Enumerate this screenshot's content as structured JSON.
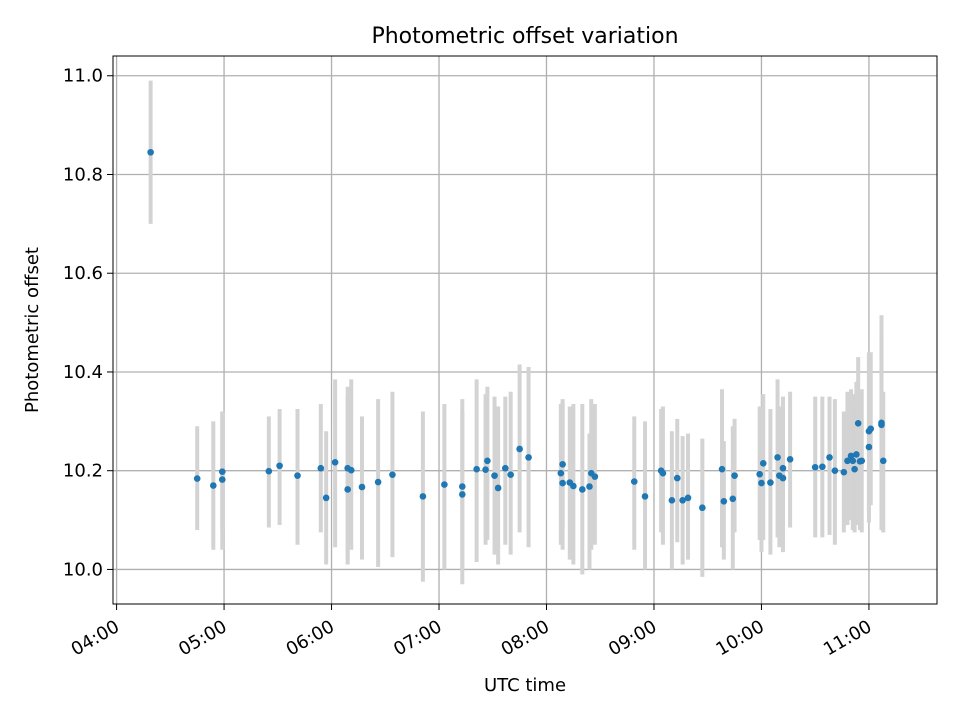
{
  "chart_data": {
    "type": "scatter",
    "title": "Photometric offset variation",
    "xlabel": "UTC time",
    "ylabel": "Photometric offset",
    "xlim": [
      "03:58",
      "11:38"
    ],
    "ylim": [
      9.93,
      11.04
    ],
    "grid": true,
    "x_ticks": [
      "04:00",
      "05:00",
      "06:00",
      "07:00",
      "08:00",
      "09:00",
      "10:00",
      "11:00"
    ],
    "y_ticks": [
      "10.0",
      "10.2",
      "10.4",
      "10.6",
      "10.8",
      "11.0"
    ],
    "colors": {
      "marker": "#1f77b4",
      "errorbar": "#d3d3d3",
      "grid": "#b0b0b0"
    },
    "series": [
      {
        "x": [
          "04:19",
          "04:45",
          "04:54",
          "04:59",
          "04:59",
          "05:25",
          "05:31",
          "05:41",
          "05:54",
          "05:57",
          "06:02",
          "06:09",
          "06:09",
          "06:11",
          "06:17",
          "06:26",
          "06:34",
          "06:51",
          "07:03",
          "07:13",
          "07:13",
          "07:21",
          "07:26",
          "07:27",
          "07:31",
          "07:33",
          "07:37",
          "07:40",
          "07:45",
          "07:50",
          "08:08",
          "08:09",
          "08:09",
          "08:13",
          "08:15",
          "08:20",
          "08:24",
          "08:25",
          "08:27",
          "08:49",
          "08:55",
          "09:04",
          "09:05",
          "09:10",
          "09:13",
          "09:16",
          "09:19",
          "09:27",
          "09:38",
          "09:39",
          "09:44",
          "09:45",
          "09:59",
          "10:00",
          "10:01",
          "10:05",
          "10:09",
          "10:10",
          "10:12",
          "10:12",
          "10:16",
          "10:30",
          "10:34",
          "10:38",
          "10:41",
          "10:46",
          "10:48",
          "10:50",
          "10:51",
          "10:52",
          "10:53",
          "10:54",
          "10:55",
          "10:56",
          "11:00",
          "11:00",
          "11:01",
          "11:07",
          "11:07",
          "11:08"
        ],
        "y": [
          10.845,
          10.184,
          10.17,
          10.198,
          10.182,
          10.199,
          10.21,
          10.19,
          10.205,
          10.145,
          10.217,
          10.162,
          10.205,
          10.201,
          10.167,
          10.177,
          10.192,
          10.148,
          10.172,
          10.152,
          10.168,
          10.203,
          10.202,
          10.22,
          10.19,
          10.165,
          10.205,
          10.192,
          10.244,
          10.227,
          10.195,
          10.175,
          10.213,
          10.176,
          10.169,
          10.162,
          10.168,
          10.195,
          10.188,
          10.178,
          10.148,
          10.2,
          10.195,
          10.14,
          10.185,
          10.14,
          10.145,
          10.125,
          10.203,
          10.138,
          10.143,
          10.19,
          10.193,
          10.175,
          10.215,
          10.176,
          10.227,
          10.19,
          10.205,
          10.185,
          10.223,
          10.207,
          10.208,
          10.227,
          10.2,
          10.197,
          10.22,
          10.23,
          10.22,
          10.203,
          10.233,
          10.296,
          10.219,
          10.22,
          10.248,
          10.28,
          10.285,
          10.293,
          10.297,
          10.22
        ],
        "yerr_low": [
          10.7,
          10.08,
          10.04,
          10.08,
          10.04,
          10.085,
          10.09,
          10.05,
          10.075,
          10.01,
          10.045,
          10.01,
          10.02,
          10.04,
          10.02,
          10.005,
          10.025,
          9.975,
          10.0,
          9.97,
          10.0,
          10.015,
          10.05,
          10.06,
          10.03,
          10.01,
          10.05,
          10.03,
          10.075,
          10.045,
          10.05,
          10.04,
          10.08,
          10.02,
          10.01,
          9.99,
          10.0,
          10.04,
          10.05,
          10.04,
          10.0,
          10.075,
          10.05,
          10.0,
          10.055,
          10.01,
          10.02,
          9.985,
          10.045,
          10.02,
          10.0,
          10.075,
          10.06,
          10.035,
          10.06,
          10.03,
          10.065,
          10.045,
          10.06,
          10.035,
          10.085,
          10.065,
          10.065,
          10.07,
          10.05,
          10.075,
          10.09,
          10.1,
          10.08,
          10.075,
          10.09,
          10.15,
          10.08,
          10.075,
          10.095,
          10.115,
          10.13,
          10.115,
          10.08,
          10.075
        ],
        "yerr_high": [
          10.99,
          10.29,
          10.3,
          10.32,
          10.32,
          10.31,
          10.325,
          10.325,
          10.335,
          10.28,
          10.385,
          10.37,
          10.35,
          10.385,
          10.31,
          10.345,
          10.36,
          10.32,
          10.335,
          10.32,
          10.345,
          10.385,
          10.355,
          10.37,
          10.35,
          10.33,
          10.35,
          10.36,
          10.415,
          10.41,
          10.335,
          10.34,
          10.345,
          10.33,
          10.335,
          10.335,
          10.275,
          10.345,
          10.335,
          10.31,
          10.3,
          10.325,
          10.33,
          10.28,
          10.305,
          10.27,
          10.275,
          10.265,
          10.365,
          10.26,
          10.29,
          10.305,
          10.33,
          10.325,
          10.355,
          10.325,
          10.385,
          10.33,
          10.35,
          10.335,
          10.36,
          10.35,
          10.35,
          10.35,
          10.345,
          10.32,
          10.36,
          10.365,
          10.355,
          10.33,
          10.38,
          10.43,
          10.36,
          10.365,
          10.435,
          10.44,
          10.44,
          10.47,
          10.515,
          10.36
        ]
      }
    ]
  }
}
